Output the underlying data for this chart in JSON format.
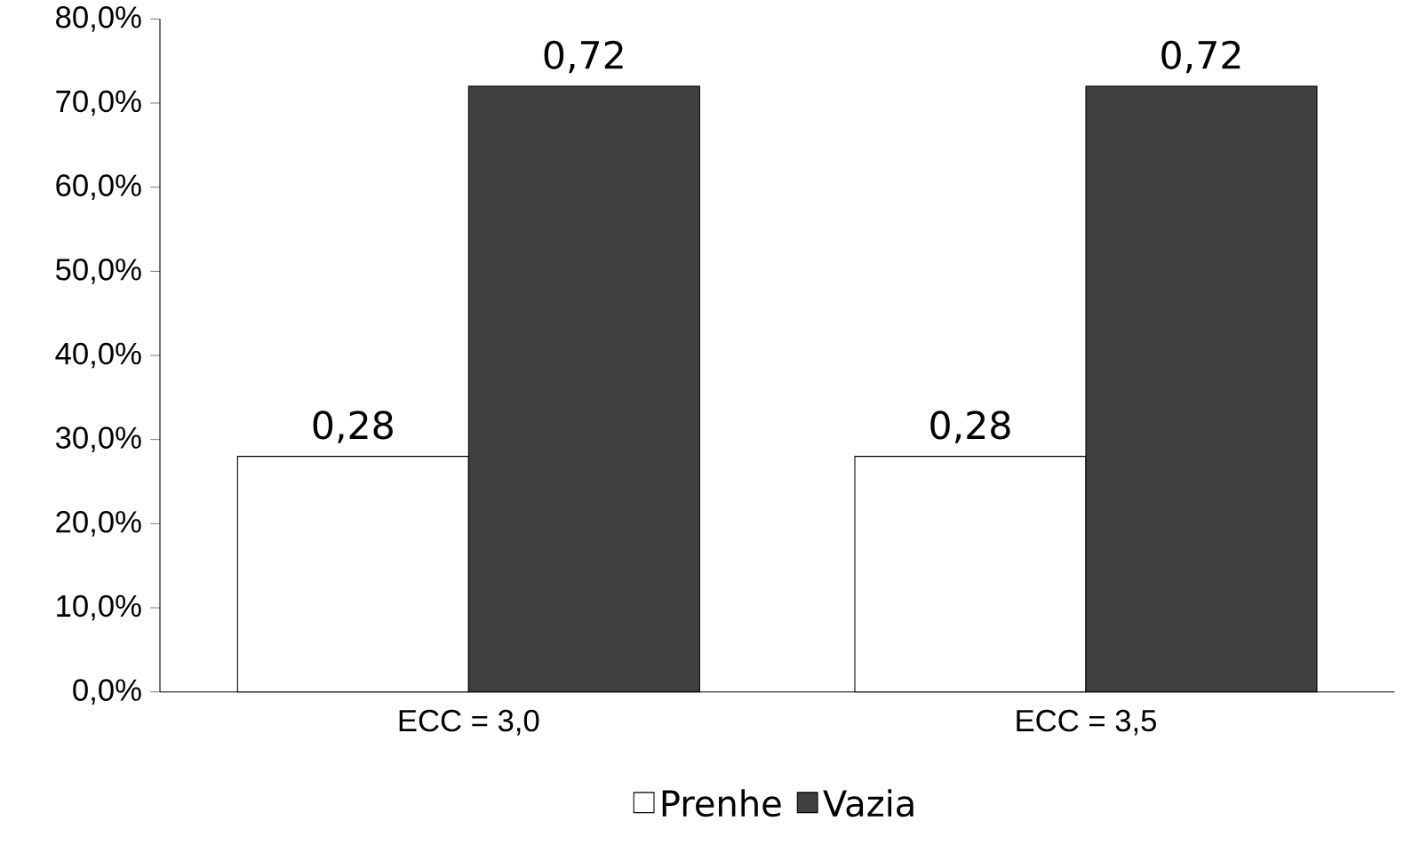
{
  "chart_data": {
    "type": "bar",
    "categories": [
      "ECC = 3,0",
      "ECC = 3,5"
    ],
    "series": [
      {
        "name": "Prenhe",
        "color": "#ffffff",
        "values": [
          0.28,
          0.28
        ],
        "value_labels": [
          "0,28",
          "0,28"
        ]
      },
      {
        "name": "Vazia",
        "color": "#404040",
        "values": [
          0.72,
          0.72
        ],
        "value_labels": [
          "0,72",
          "0,72"
        ]
      }
    ],
    "ylim": [
      0,
      0.8
    ],
    "yticks": [
      {
        "value": 0,
        "label": "0,0%"
      },
      {
        "value": 0.1,
        "label": "10,0%"
      },
      {
        "value": 0.2,
        "label": "20,0%"
      },
      {
        "value": 0.3,
        "label": "30,0%"
      },
      {
        "value": 0.4,
        "label": "40,0%"
      },
      {
        "value": 0.5,
        "label": "50,0%"
      },
      {
        "value": 0.6,
        "label": "60,0%"
      },
      {
        "value": 0.7,
        "label": "70,0%"
      },
      {
        "value": 0.8,
        "label": "80,0%"
      }
    ],
    "legend": "bottom"
  }
}
